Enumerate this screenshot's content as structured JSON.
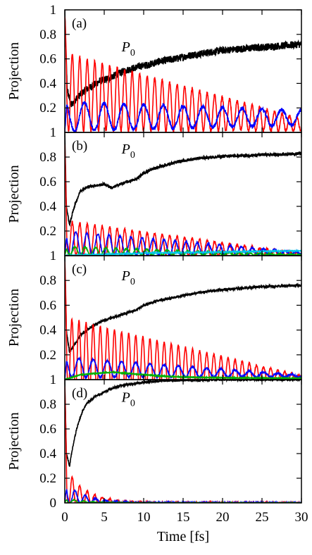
{
  "chart_data": [
    {
      "panel": "(a)",
      "type": "line",
      "ylabel": "Projection",
      "xlabel": "",
      "xlim": [
        0,
        30
      ],
      "ylim": [
        0,
        1
      ],
      "x_ticks": [],
      "y_ticks": [
        {
          "value": 0,
          "label": "1"
        },
        {
          "value": 0.2,
          "label": "0.2"
        },
        {
          "value": 0.4,
          "label": "0.4"
        },
        {
          "value": 0.6,
          "label": "0.6"
        },
        {
          "value": 0.8,
          "label": "0.8"
        },
        {
          "value": 1,
          "label": "1"
        }
      ],
      "annotation": {
        "text": "P",
        "sub": "0",
        "x": 7.2,
        "y": 0.66
      },
      "series": [
        {
          "color": "#000000",
          "noise": 0.03,
          "points": [
            [
              0,
              1.0
            ],
            [
              0.3,
              0.35
            ],
            [
              0.8,
              0.22
            ],
            [
              1.5,
              0.28
            ],
            [
              2.5,
              0.34
            ],
            [
              3.5,
              0.38
            ],
            [
              4.5,
              0.42
            ],
            [
              5.5,
              0.44
            ],
            [
              6.5,
              0.47
            ],
            [
              7.5,
              0.5
            ],
            [
              8.5,
              0.52
            ],
            [
              9.5,
              0.54
            ],
            [
              10.5,
              0.55
            ],
            [
              12,
              0.58
            ],
            [
              14,
              0.6
            ],
            [
              16,
              0.63
            ],
            [
              18,
              0.65
            ],
            [
              20,
              0.67
            ],
            [
              22,
              0.68
            ],
            [
              24,
              0.69
            ],
            [
              26,
              0.7
            ],
            [
              28,
              0.71
            ],
            [
              30,
              0.72
            ]
          ]
        },
        {
          "color": "#ff0000",
          "noise": 0.012,
          "osc": {
            "period": 0.95,
            "center_start": 0.33,
            "center_end": 0.06,
            "amp_start": 0.32,
            "amp_end": 0.05
          },
          "start": 0.95
        },
        {
          "color": "#0000ff",
          "noise": 0.015,
          "osc": {
            "period": 2.5,
            "center_start": 0.13,
            "center_end": 0.12,
            "amp_start": 0.12,
            "amp_end": 0.06
          },
          "start": 0.0
        }
      ]
    },
    {
      "panel": "(b)",
      "type": "line",
      "ylabel": "Projection",
      "xlabel": "",
      "xlim": [
        0,
        30
      ],
      "ylim": [
        0,
        1
      ],
      "x_ticks": [],
      "y_ticks": [
        {
          "value": 0,
          "label": "1"
        },
        {
          "value": 0.2,
          "label": "0.2"
        },
        {
          "value": 0.4,
          "label": "0.4"
        },
        {
          "value": 0.6,
          "label": "0.6"
        },
        {
          "value": 0.8,
          "label": "0.8"
        }
      ],
      "annotation": {
        "text": "P",
        "sub": "0",
        "x": 7.2,
        "y": 0.83
      },
      "series": [
        {
          "color": "#000000",
          "noise": 0.012,
          "points": [
            [
              0,
              1.0
            ],
            [
              0.2,
              0.4
            ],
            [
              0.6,
              0.25
            ],
            [
              1.2,
              0.4
            ],
            [
              2,
              0.53
            ],
            [
              3,
              0.56
            ],
            [
              4,
              0.57
            ],
            [
              5,
              0.58
            ],
            [
              6,
              0.55
            ],
            [
              7,
              0.58
            ],
            [
              8,
              0.6
            ],
            [
              9,
              0.62
            ],
            [
              10,
              0.67
            ],
            [
              11,
              0.7
            ],
            [
              12,
              0.72
            ],
            [
              13,
              0.74
            ],
            [
              15,
              0.77
            ],
            [
              17,
              0.79
            ],
            [
              19,
              0.8
            ],
            [
              21,
              0.81
            ],
            [
              23,
              0.81
            ],
            [
              25,
              0.82
            ],
            [
              27,
              0.82
            ],
            [
              30,
              0.83
            ]
          ]
        },
        {
          "color": "#ff0000",
          "noise": 0.01,
          "osc": {
            "period": 0.95,
            "center_start": 0.14,
            "center_end": 0.01,
            "amp_start": 0.14,
            "amp_end": 0.01
          },
          "start": 0.9
        },
        {
          "color": "#0000ff",
          "noise": 0.006,
          "osc": {
            "period": 1.4,
            "center_start": 0.1,
            "center_end": 0.02,
            "amp_start": 0.1,
            "amp_end": 0.01
          },
          "start": 0.0
        },
        {
          "color": "#00b000",
          "noise": 0.004,
          "osc": {
            "period": 1.3,
            "center_start": 0.04,
            "center_end": 0.005,
            "amp_start": 0.035,
            "amp_end": 0.003
          },
          "start": 0.0
        },
        {
          "color": "#00c8e6",
          "noise": 0.003,
          "points": [
            [
              0,
              0.0
            ],
            [
              5,
              0.01
            ],
            [
              10,
              0.02
            ],
            [
              15,
              0.025
            ],
            [
              20,
              0.03
            ],
            [
              25,
              0.035
            ],
            [
              30,
              0.04
            ]
          ]
        }
      ]
    },
    {
      "panel": "(c)",
      "type": "line",
      "ylabel": "Projection",
      "xlabel": "",
      "xlim": [
        0,
        30
      ],
      "ylim": [
        0,
        1
      ],
      "x_ticks": [],
      "y_ticks": [
        {
          "value": 0,
          "label": "1"
        },
        {
          "value": 0.2,
          "label": "0.2"
        },
        {
          "value": 0.4,
          "label": "0.4"
        },
        {
          "value": 0.6,
          "label": "0.6"
        },
        {
          "value": 0.8,
          "label": "0.8"
        }
      ],
      "annotation": {
        "text": "P",
        "sub": "0",
        "x": 7.2,
        "y": 0.8
      },
      "series": [
        {
          "color": "#000000",
          "noise": 0.01,
          "points": [
            [
              0,
              1.0
            ],
            [
              0.2,
              0.4
            ],
            [
              0.6,
              0.22
            ],
            [
              1.2,
              0.28
            ],
            [
              2,
              0.36
            ],
            [
              3,
              0.41
            ],
            [
              4,
              0.45
            ],
            [
              5,
              0.48
            ],
            [
              6,
              0.5
            ],
            [
              7,
              0.52
            ],
            [
              8,
              0.54
            ],
            [
              9,
              0.56
            ],
            [
              10,
              0.6
            ],
            [
              11,
              0.62
            ],
            [
              12,
              0.64
            ],
            [
              13,
              0.65
            ],
            [
              15,
              0.68
            ],
            [
              17,
              0.7
            ],
            [
              19,
              0.72
            ],
            [
              21,
              0.73
            ],
            [
              23,
              0.74
            ],
            [
              25,
              0.75
            ],
            [
              27,
              0.755
            ],
            [
              30,
              0.76
            ]
          ]
        },
        {
          "color": "#ff0000",
          "noise": 0.008,
          "osc": {
            "period": 0.9,
            "center_start": 0.2,
            "center_end": 0.02,
            "amp_start": 0.3,
            "amp_end": 0.01
          },
          "start": 0.95
        },
        {
          "color": "#0000ff",
          "noise": 0.008,
          "osc": {
            "period": 1.8,
            "center_start": 0.1,
            "center_end": 0.03,
            "amp_start": 0.08,
            "amp_end": 0.008
          },
          "start": 0.0
        },
        {
          "color": "#00b000",
          "noise": 0.003,
          "points": [
            [
              0,
              0.0
            ],
            [
              2,
              0.04
            ],
            [
              4,
              0.05
            ],
            [
              6,
              0.06
            ],
            [
              8,
              0.05
            ],
            [
              10,
              0.04
            ],
            [
              12,
              0.03
            ],
            [
              15,
              0.02
            ],
            [
              20,
              0.015
            ],
            [
              30,
              0.01
            ]
          ]
        }
      ]
    },
    {
      "panel": "(d)",
      "type": "line",
      "ylabel": "Projection",
      "xlabel": "Time [fs]",
      "xlim": [
        0,
        30
      ],
      "ylim": [
        0,
        1
      ],
      "x_ticks": [
        {
          "value": 0,
          "label": "0"
        },
        {
          "value": 5,
          "label": "5"
        },
        {
          "value": 10,
          "label": "10"
        },
        {
          "value": 15,
          "label": "15"
        },
        {
          "value": 20,
          "label": "20"
        },
        {
          "value": 25,
          "label": "25"
        },
        {
          "value": 30,
          "label": "30"
        }
      ],
      "y_ticks": [
        {
          "value": 0,
          "label": "0"
        },
        {
          "value": 0.2,
          "label": "0.2"
        },
        {
          "value": 0.4,
          "label": "0.4"
        },
        {
          "value": 0.6,
          "label": "0.6"
        },
        {
          "value": 0.8,
          "label": "0.8"
        }
      ],
      "annotation": {
        "text": "P",
        "sub": "0",
        "x": 7.2,
        "y": 0.82
      },
      "series": [
        {
          "color": "#000000",
          "noise": 0.01,
          "points": [
            [
              0,
              1.0
            ],
            [
              0.2,
              0.4
            ],
            [
              0.6,
              0.3
            ],
            [
              1,
              0.45
            ],
            [
              1.5,
              0.6
            ],
            [
              2,
              0.7
            ],
            [
              2.5,
              0.78
            ],
            [
              3,
              0.82
            ],
            [
              4,
              0.87
            ],
            [
              5,
              0.9
            ],
            [
              6,
              0.93
            ],
            [
              7,
              0.95
            ],
            [
              8,
              0.96
            ],
            [
              9,
              0.97
            ],
            [
              10,
              0.98
            ],
            [
              12,
              0.99
            ],
            [
              15,
              0.995
            ],
            [
              20,
              1.0
            ],
            [
              30,
              1.0
            ]
          ]
        },
        {
          "color": "#ff0000",
          "noise": 0.008,
          "osc": {
            "period": 0.95,
            "center_start": 0.13,
            "center_end": 0.0,
            "amp_start": 0.17,
            "amp_end": 0.0,
            "decay": 4
          },
          "start": 0.95
        },
        {
          "color": "#0000ff",
          "noise": 0.006,
          "osc": {
            "period": 1.3,
            "center_start": 0.08,
            "center_end": 0.0,
            "amp_start": 0.09,
            "amp_end": 0.0,
            "decay": 4
          },
          "start": 0.0
        },
        {
          "color": "#00b000",
          "noise": 0.002,
          "osc": {
            "period": 1.2,
            "center_start": 0.02,
            "center_end": 0.0,
            "amp_start": 0.02,
            "amp_end": 0.0,
            "decay": 4
          },
          "start": 0.0
        }
      ]
    }
  ]
}
